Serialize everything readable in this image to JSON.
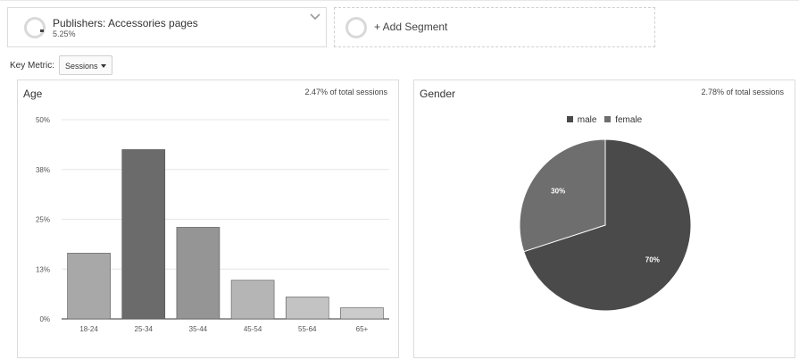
{
  "segments": {
    "primary": {
      "title": "Publishers: Accessories pages",
      "subtitle": "5.25%"
    },
    "add_label": "+ Add Segment"
  },
  "key_metric": {
    "label": "Key Metric:",
    "selected": "Sessions"
  },
  "age_card": {
    "title": "Age",
    "note": "2.47% of total sessions"
  },
  "gender_card": {
    "title": "Gender",
    "note": "2.78% of total sessions"
  },
  "chart_data": [
    {
      "type": "bar",
      "title": "Age",
      "categories": [
        "18-24",
        "25-34",
        "35-44",
        "45-54",
        "55-64",
        "65+"
      ],
      "values": [
        16.5,
        42.5,
        23.0,
        9.7,
        5.5,
        2.8
      ],
      "ylim": [
        0,
        50
      ],
      "yticks": [
        0,
        12.5,
        25,
        37.5,
        50
      ],
      "ytick_labels": [
        "0%",
        "13%",
        "25%",
        "38%",
        "50%"
      ],
      "bar_colors": [
        "#a8a8a8",
        "#6b6b6b",
        "#959595",
        "#b5b5b5",
        "#c3c3c3",
        "#cbcbcb"
      ],
      "grid": true
    },
    {
      "type": "pie",
      "title": "Gender",
      "labels": [
        "male",
        "female"
      ],
      "values": [
        70,
        30
      ],
      "value_labels": [
        "70%",
        "30%"
      ],
      "colors": [
        "#4a4a4a",
        "#6e6e6e"
      ],
      "legend": "top"
    }
  ]
}
